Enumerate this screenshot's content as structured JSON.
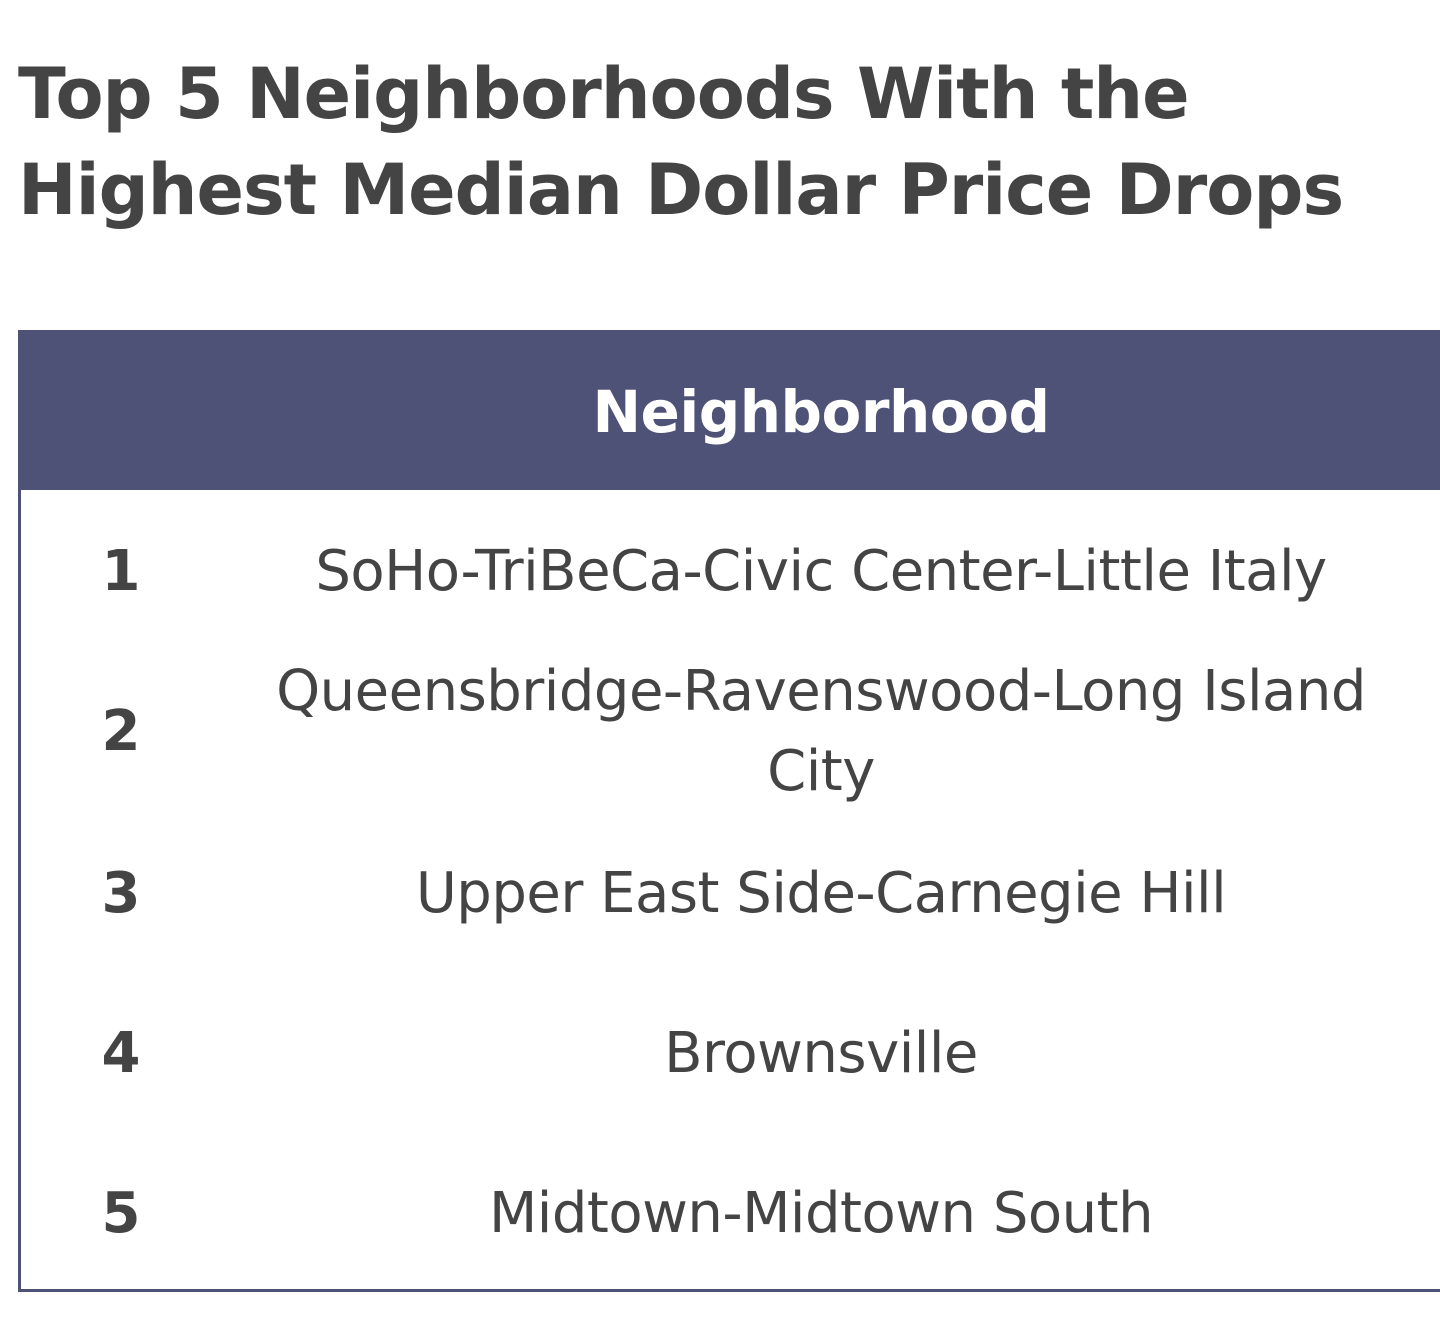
{
  "title": "Top 5 Neighborhoods With the Highest Median Dollar Price Drops",
  "table": {
    "header": "Neighborhood",
    "rows": [
      {
        "rank": "1",
        "name": "SoHo-TriBeCa-Civic Center-Little Italy"
      },
      {
        "rank": "2",
        "name": "Queensbridge-Ravenswood-Long Island City"
      },
      {
        "rank": "3",
        "name": "Upper East Side-Carnegie Hill"
      },
      {
        "rank": "4",
        "name": "Brownsville"
      },
      {
        "rank": "5",
        "name": "Midtown-Midtown South"
      }
    ]
  },
  "colors": {
    "header_background": "#4f5277",
    "header_text": "#ffffff",
    "body_text": "#444444",
    "border": "#4f5277"
  }
}
